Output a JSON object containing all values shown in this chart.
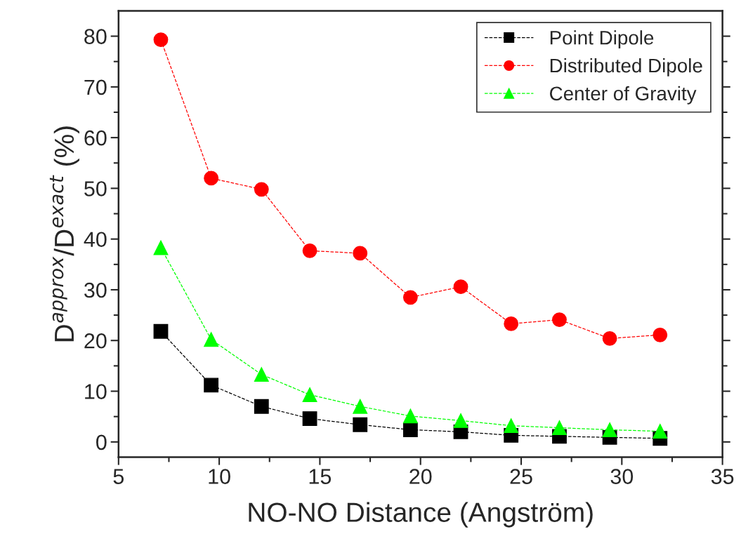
{
  "chart_data": {
    "type": "line",
    "xlabel": "NO-NO Distance (Angström)",
    "ylabel": "D$^{approx}$/D$^{exact}$ (%)",
    "xlim": [
      5,
      35
    ],
    "ylim": [
      -3,
      85
    ],
    "xticks": [
      5,
      {
        "value": 7.5,
        "label": null
      },
      10,
      {
        "value": 12.5,
        "label": null
      },
      15,
      {
        "value": 17.5,
        "label": null
      },
      20,
      {
        "value": 22.5,
        "label": null
      },
      25,
      {
        "value": 27.5,
        "label": null
      },
      30,
      {
        "value": 32.5,
        "label": null
      },
      35
    ],
    "yticks": [
      0,
      {
        "value": 5,
        "label": null
      },
      10,
      {
        "value": 15,
        "label": null
      },
      20,
      {
        "value": 25,
        "label": null
      },
      30,
      {
        "value": 35,
        "label": null
      },
      40,
      {
        "value": 45,
        "label": null
      },
      50,
      {
        "value": 55,
        "label": null
      },
      60,
      {
        "value": 65,
        "label": null
      },
      70,
      {
        "value": 75,
        "label": null
      },
      80
    ],
    "x": [
      7.1,
      9.6,
      12.1,
      14.5,
      17.0,
      19.5,
      22.0,
      24.5,
      26.9,
      29.4,
      31.9
    ],
    "grid": false,
    "legend": "top right",
    "line_style": "dashed",
    "series": [
      {
        "name": "Point Dipole",
        "color": "#000000",
        "marker": "square",
        "values": [
          21.8,
          11.2,
          7.0,
          4.6,
          3.4,
          2.4,
          2.0,
          1.3,
          1.1,
          0.9,
          0.7
        ]
      },
      {
        "name": "Distributed Dipole",
        "color": "#ff0000",
        "marker": "circle",
        "values": [
          79.3,
          52.0,
          49.8,
          37.7,
          37.2,
          28.5,
          30.6,
          23.3,
          24.1,
          20.4,
          21.1
        ]
      },
      {
        "name": "Center of Gravity",
        "color": "#00ff00",
        "marker": "triangle",
        "values": [
          38.3,
          20.2,
          13.3,
          9.3,
          7.0,
          5.1,
          4.2,
          3.2,
          2.8,
          2.4,
          2.1
        ]
      }
    ]
  }
}
